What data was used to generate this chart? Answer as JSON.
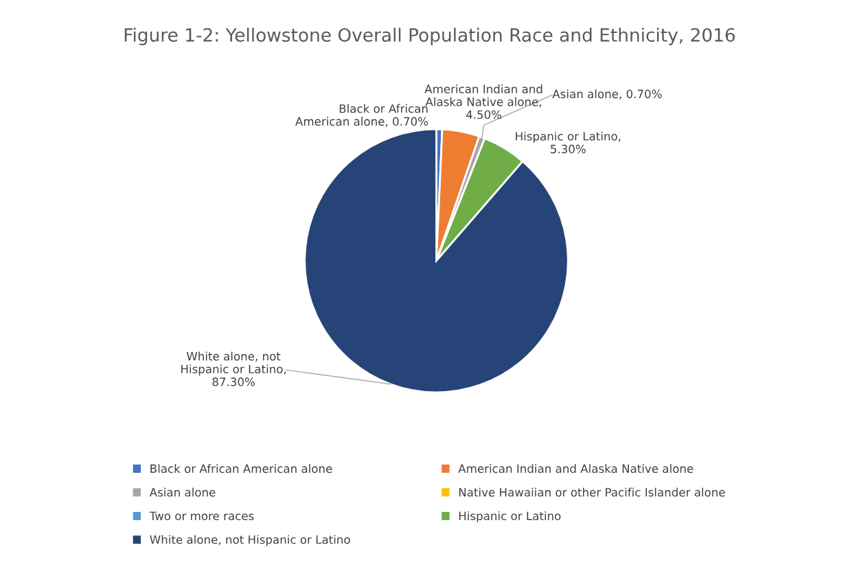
{
  "chart_data": {
    "type": "pie",
    "title": "Figure 1-2: Yellowstone Overall Population Race and Ethnicity, 2016",
    "categories": [
      "Black or African American alone",
      "American Indian and Alaska Native alone",
      "Asian alone",
      "Native Hawaiian or other Pacific Islander alone",
      "Two or more races",
      "Hispanic or Latino",
      "White alone, not Hispanic or Latino"
    ],
    "values": [
      0.7,
      4.5,
      0.7,
      0,
      0,
      5.3,
      87.3
    ],
    "value_labels": [
      "Black or African American alone, 0.70%",
      "American Indian and Alaska Native alone, 4.50%",
      "Asian alone, 0.70%",
      null,
      null,
      "Hispanic or Latino, 5.30%",
      "White alone, not Hispanic or Latino, 87.30%"
    ],
    "colors": [
      "#4472c4",
      "#ed7d31",
      "#a5a5a5",
      "#ffc000",
      "#5b9bd5",
      "#70ad47",
      "#264478"
    ],
    "legend": "bottom"
  }
}
